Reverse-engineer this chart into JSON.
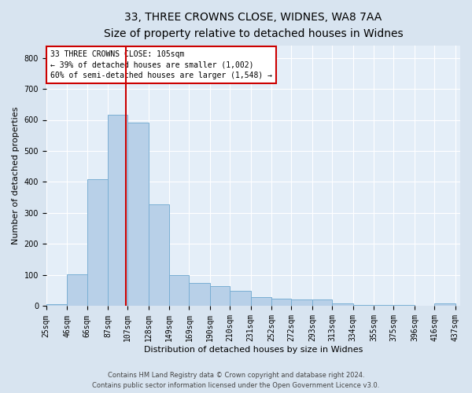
{
  "title1": "33, THREE CROWNS CLOSE, WIDNES, WA8 7AA",
  "title2": "Size of property relative to detached houses in Widnes",
  "xlabel": "Distribution of detached houses by size in Widnes",
  "ylabel": "Number of detached properties",
  "footer1": "Contains HM Land Registry data © Crown copyright and database right 2024.",
  "footer2": "Contains public sector information licensed under the Open Government Licence v3.0.",
  "annotation_line1": "33 THREE CROWNS CLOSE: 105sqm",
  "annotation_line2": "← 39% of detached houses are smaller (1,002)",
  "annotation_line3": "60% of semi-detached houses are larger (1,548) →",
  "bar_color": "#b8d0e8",
  "bar_edge_color": "#7aafd4",
  "bar_left_edges": [
    25,
    46,
    66,
    87,
    107,
    128,
    149,
    169,
    190,
    210,
    231,
    252,
    272,
    293,
    313,
    334,
    355,
    375,
    396,
    416
  ],
  "bar_widths": [
    21,
    20,
    21,
    20,
    21,
    21,
    20,
    21,
    20,
    21,
    21,
    20,
    21,
    20,
    21,
    21,
    20,
    21,
    20,
    21
  ],
  "bar_heights": [
    5,
    103,
    408,
    617,
    590,
    328,
    100,
    75,
    65,
    50,
    30,
    25,
    22,
    22,
    8,
    3,
    3,
    3,
    0,
    8
  ],
  "vline_x": 105,
  "vline_color": "#cc0000",
  "ylim": [
    0,
    840
  ],
  "yticks": [
    0,
    100,
    200,
    300,
    400,
    500,
    600,
    700,
    800
  ],
  "bg_color": "#d8e4f0",
  "plot_bg_color": "#e4eef8",
  "annotation_box_color": "#ffffff",
  "annotation_box_edge": "#cc0000",
  "title1_fontsize": 10,
  "title2_fontsize": 9,
  "ylabel_fontsize": 8,
  "xlabel_fontsize": 8,
  "tick_fontsize": 7,
  "footer_fontsize": 6
}
